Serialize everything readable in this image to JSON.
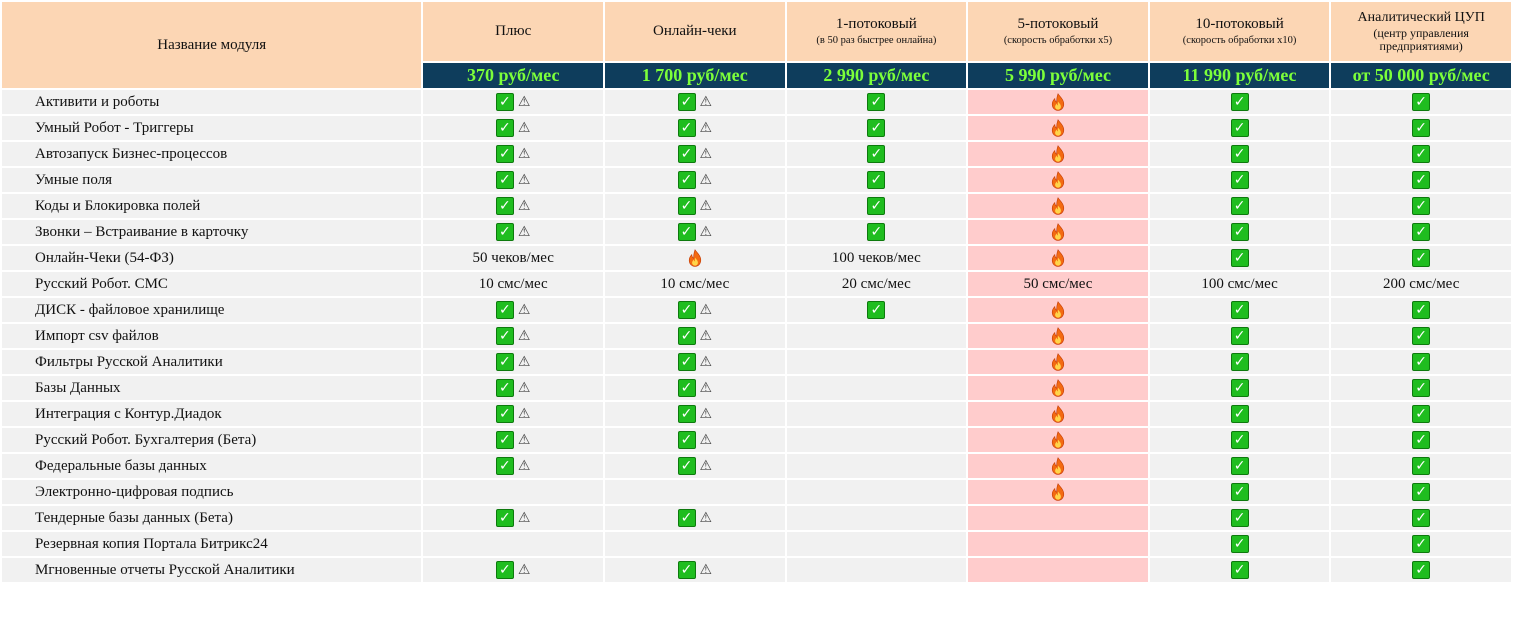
{
  "header": {
    "module_label": "Название модуля",
    "plans": [
      {
        "title": "Плюс",
        "sub": "",
        "price": "370 руб/мес"
      },
      {
        "title": "Онлайн-чеки",
        "sub": "",
        "price": "1 700 руб/мес"
      },
      {
        "title": "1-потоковый",
        "sub": "(в 50 раз быстрее онлайна)",
        "price": "2 990 руб/мес"
      },
      {
        "title": "5-потоковый",
        "sub": "(скорость обработки x5)",
        "price": "5 990 руб/мес"
      },
      {
        "title": "10-потоковый",
        "sub": "(скорость обработки x10)",
        "price": "11 990 руб/мес"
      },
      {
        "title": "Аналитический ЦУП",
        "sub": "(центр управления предприятиями)",
        "price": "от 50 000 руб/мес"
      }
    ]
  },
  "icons": {
    "check": "check-icon",
    "warning": "warning-icon",
    "fire": "fire-icon"
  },
  "colors": {
    "header_bg": "#fcd6b4",
    "price_bg": "#0e3d5c",
    "price_text": "#7cff3a",
    "row_bg": "#f1f1f1",
    "highlight_col_bg": "#ffcccc",
    "check_green": "#1fbd1f"
  },
  "highlight_column": 3,
  "rows": [
    {
      "name": "Активити и роботы",
      "cells": [
        "cw",
        "cw",
        "c",
        "f",
        "c",
        "c"
      ]
    },
    {
      "name": "Умный Робот - Триггеры",
      "cells": [
        "cw",
        "cw",
        "c",
        "f",
        "c",
        "c"
      ]
    },
    {
      "name": "Автозапуск Бизнес-процессов",
      "cells": [
        "cw",
        "cw",
        "c",
        "f",
        "c",
        "c"
      ]
    },
    {
      "name": "Умные поля",
      "cells": [
        "cw",
        "cw",
        "c",
        "f",
        "c",
        "c"
      ]
    },
    {
      "name": "Коды и Блокировка полей",
      "cells": [
        "cw",
        "cw",
        "c",
        "f",
        "c",
        "c"
      ]
    },
    {
      "name": "Звонки – Встраивание в карточку",
      "cells": [
        "cw",
        "cw",
        "c",
        "f",
        "c",
        "c"
      ]
    },
    {
      "name": "Онлайн-Чеки (54-ФЗ)",
      "cells": [
        "t:50 чеков/мес",
        "f",
        "t:100 чеков/мес",
        "f",
        "c",
        "c"
      ]
    },
    {
      "name": "Русский Робот. СМС",
      "cells": [
        "t:10 смс/мес",
        "t:10 смс/мес",
        "t:20 смс/мес",
        "t:50 смс/мес",
        "t:100 смс/мес",
        "t:200 смс/мес"
      ]
    },
    {
      "name": "ДИСК - файловое хранилище",
      "cells": [
        "cw",
        "cw",
        "c",
        "f",
        "c",
        "c"
      ]
    },
    {
      "name": "Импорт csv файлов",
      "cells": [
        "cw",
        "cw",
        "",
        "f",
        "c",
        "c"
      ]
    },
    {
      "name": "Фильтры Русской Аналитики",
      "cells": [
        "cw",
        "cw",
        "",
        "f",
        "c",
        "c"
      ]
    },
    {
      "name": "Базы Данных",
      "cells": [
        "cw",
        "cw",
        "",
        "f",
        "c",
        "c"
      ]
    },
    {
      "name": "Интеграция с Контур.Диадок",
      "cells": [
        "cw",
        "cw",
        "",
        "f",
        "c",
        "c"
      ]
    },
    {
      "name": "Русский Робот. Бухгалтерия (Бета)",
      "cells": [
        "cw",
        "cw",
        "",
        "f",
        "c",
        "c"
      ]
    },
    {
      "name": "Федеральные базы данных",
      "cells": [
        "cw",
        "cw",
        "",
        "f",
        "c",
        "c"
      ]
    },
    {
      "name": "Электронно-цифровая подпись",
      "cells": [
        "",
        "",
        "",
        "f",
        "c",
        "c"
      ]
    },
    {
      "name": "Тендерные базы данных (Бета)",
      "cells": [
        "cw",
        "cw",
        "",
        "",
        "c",
        "c"
      ]
    },
    {
      "name": "Резервная копия Портала Битрикс24",
      "cells": [
        "",
        "",
        "",
        "",
        "c",
        "c"
      ]
    },
    {
      "name": "Мгновенные отчеты Русской Аналитики",
      "cells": [
        "cw",
        "cw",
        "",
        "",
        "c",
        "c"
      ]
    }
  ]
}
